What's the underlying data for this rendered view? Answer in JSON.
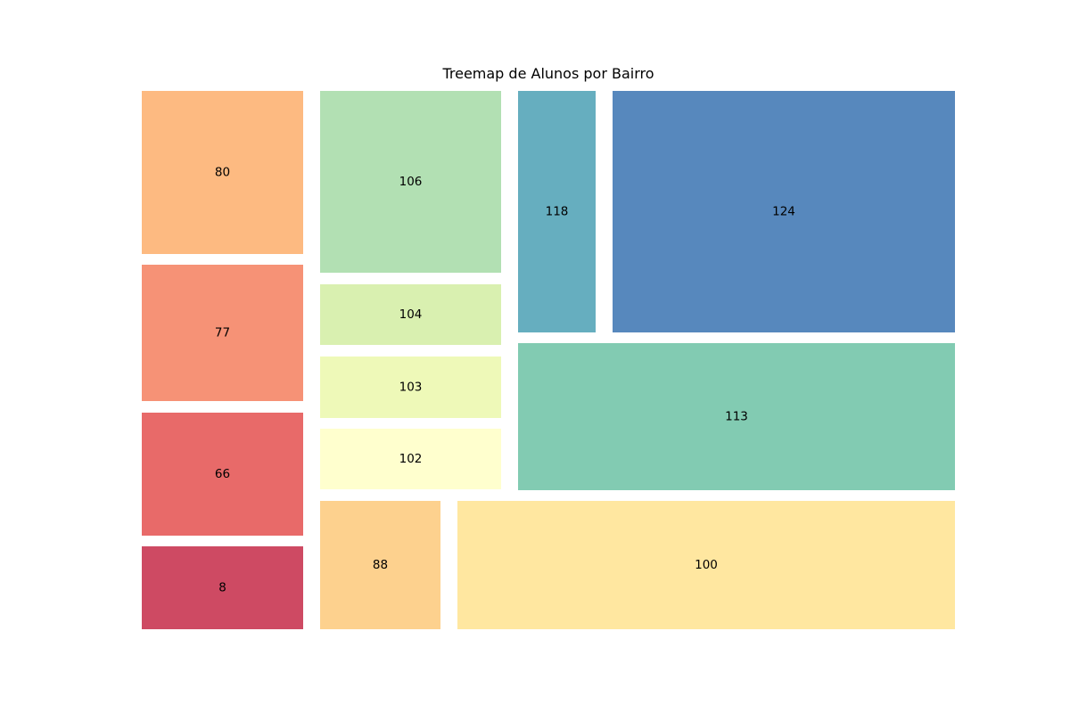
{
  "chart_data": {
    "type": "treemap",
    "title": "Treemap de Alunos por Bairro",
    "tiles": [
      {
        "label": "80",
        "value": 80,
        "color": "#fdae6b"
      },
      {
        "label": "77",
        "value": 77,
        "color": "#f47f5e"
      },
      {
        "label": "66",
        "value": 66,
        "color": "#e4504f"
      },
      {
        "label": "8",
        "value": 8,
        "color": "#c52a48"
      },
      {
        "label": "106",
        "value": 106,
        "color": "#a5dba6"
      },
      {
        "label": "104",
        "value": 104,
        "color": "#d2eda2"
      },
      {
        "label": "103",
        "value": 103,
        "color": "#ebf8ac"
      },
      {
        "label": "102",
        "value": 102,
        "color": "#ffffc6"
      },
      {
        "label": "88",
        "value": 88,
        "color": "#fdc97a"
      },
      {
        "label": "118",
        "value": 118,
        "color": "#4ba0b4"
      },
      {
        "label": "124",
        "value": 124,
        "color": "#3a73b2"
      },
      {
        "label": "113",
        "value": 113,
        "color": "#6cc2a5"
      },
      {
        "label": "100",
        "value": 100,
        "color": "#ffe38f"
      }
    ],
    "tile_opacity": 0.85,
    "axes_visible": false
  }
}
